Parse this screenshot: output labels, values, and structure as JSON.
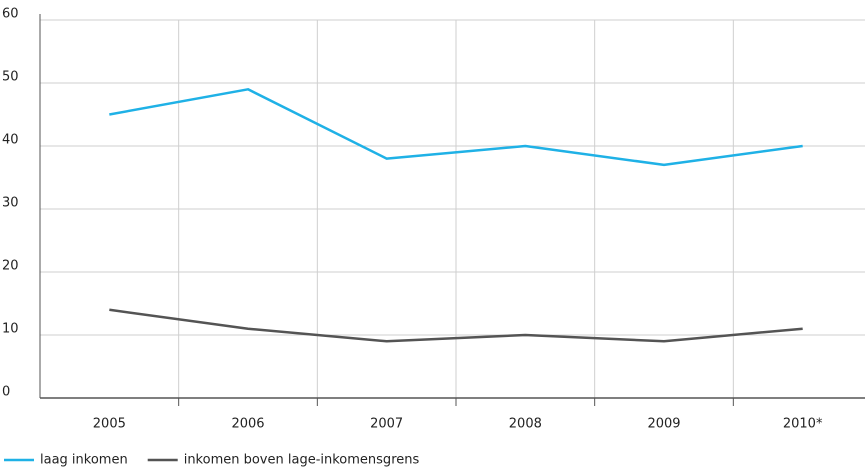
{
  "chart_data": {
    "type": "line",
    "categories": [
      "2005",
      "2006",
      "2007",
      "2008",
      "2009",
      "2010*"
    ],
    "series": [
      {
        "name": "laag inkomen",
        "color": "#1fb1e6",
        "values": [
          45,
          49,
          38,
          40,
          37,
          40
        ]
      },
      {
        "name": "inkomen boven lage-inkomensgrens",
        "color": "#545454",
        "values": [
          14,
          11,
          9,
          10,
          9,
          11
        ]
      }
    ],
    "ylim": [
      0,
      60
    ],
    "yticks": [
      0,
      10,
      20,
      30,
      40,
      50,
      60
    ],
    "grid": true,
    "legend": "bottom-left"
  }
}
